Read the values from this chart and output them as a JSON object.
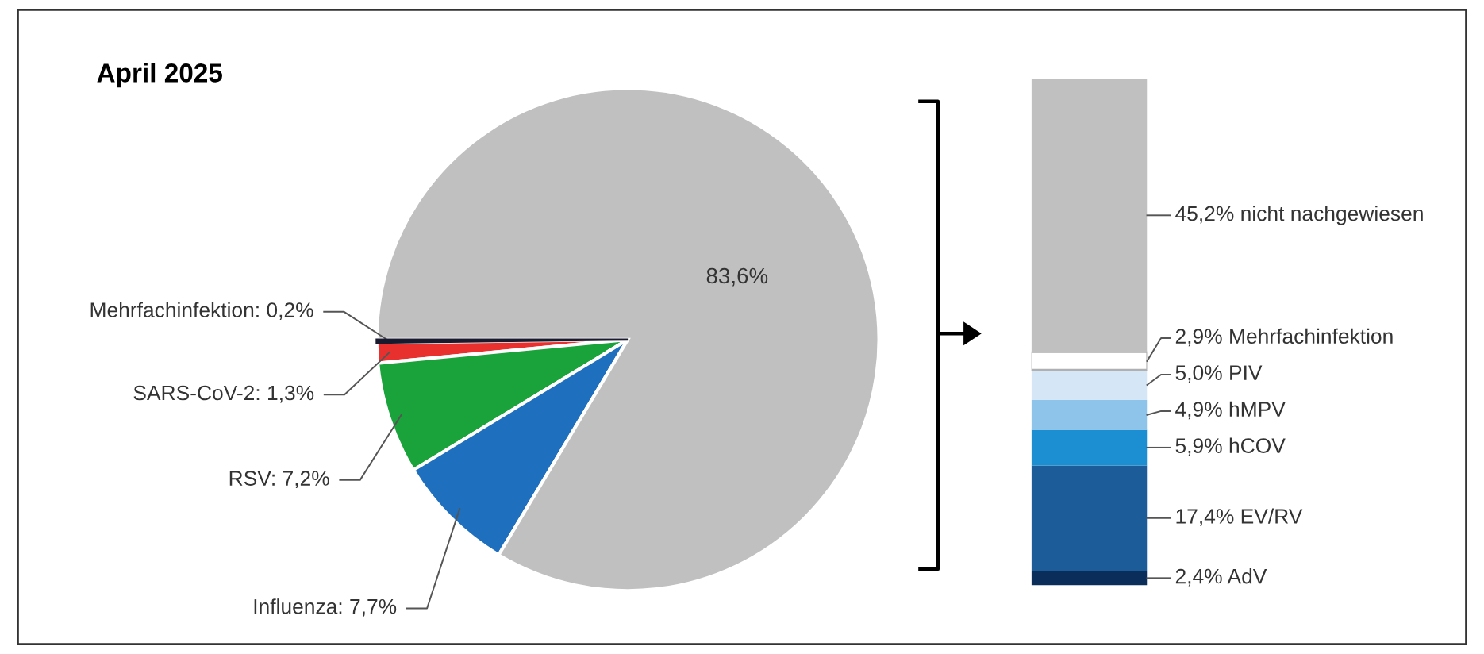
{
  "chart_data": [
    {
      "type": "pie",
      "title": "April 2025",
      "categories": [
        "Mehrfachinfektion: 0,2%",
        "SARS-CoV-2: 1,3%",
        "RSV: 7,2%",
        "Influenza: 7,7%",
        null
      ],
      "values": [
        0.2,
        1.3,
        7.2,
        7.7,
        83.6
      ],
      "value_labels": [
        null,
        null,
        null,
        null,
        "83,6%"
      ],
      "colors": [
        "#1a1a2e",
        "#e8312f",
        "#1aa33a",
        "#1f6fbf",
        "#c0c0c0"
      ],
      "legend": false
    },
    {
      "type": "bar",
      "stacked": true,
      "categories": [
        null
      ],
      "legend": false,
      "series": [
        {
          "name": "AdV",
          "color": "#0b2d5a",
          "values": [
            2.4
          ],
          "value_labels": [
            "2,4%"
          ]
        },
        {
          "name": "EV/RV",
          "color": "#1c5d99",
          "values": [
            17.4
          ],
          "value_labels": [
            "17,4%"
          ]
        },
        {
          "name": "hCOV",
          "color": "#1b8fd2",
          "values": [
            5.9
          ],
          "value_labels": [
            "5,9%"
          ]
        },
        {
          "name": "hMPV",
          "color": "#8fc4ea",
          "values": [
            4.9
          ],
          "value_labels": [
            "4,9%"
          ]
        },
        {
          "name": "PIV",
          "color": "#d5e7f6",
          "values": [
            5.0
          ],
          "value_labels": [
            "5,0%"
          ]
        },
        {
          "name": "Mehrfachinfektion",
          "color": "#ffffff",
          "values": [
            2.9
          ],
          "value_labels": [
            "2,9%"
          ]
        },
        {
          "name": "nicht nachgewiesen",
          "color": "#c0c0c0",
          "values": [
            45.2
          ],
          "value_labels": [
            "45,2%"
          ]
        }
      ]
    }
  ]
}
